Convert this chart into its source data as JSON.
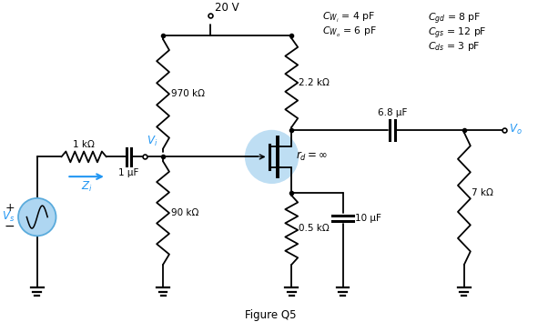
{
  "title": "Figure Q5",
  "background_color": "#ffffff",
  "supply_voltage": "20 V",
  "line_color": "#000000",
  "highlight_color": "#aed6f1",
  "cyan_color": "#2196F3",
  "components": {
    "R1": "970 kΩ",
    "R2": "90 kΩ",
    "RD": "2.2 kΩ",
    "RS": "0.5 kΩ",
    "RL": "7 kΩ",
    "Ri": "1 kΩ",
    "Ci": "1 μF",
    "Cs": "10 μF",
    "Co": "6.8 μF",
    "rd": "r_d = ∞",
    "Vi": "V_i",
    "Vs": "V_s",
    "Zi": "Z_i",
    "Vo": "V_o"
  },
  "params": {
    "CWi": "C_{W_i} = 4 pF",
    "CWo": "C_{W_o} = 6 pF",
    "Cgd": "C_{gd} = 8 pF",
    "Cgs": "C_{gs} = 12 pF",
    "Cds": "C_{ds} = 3 pF"
  }
}
